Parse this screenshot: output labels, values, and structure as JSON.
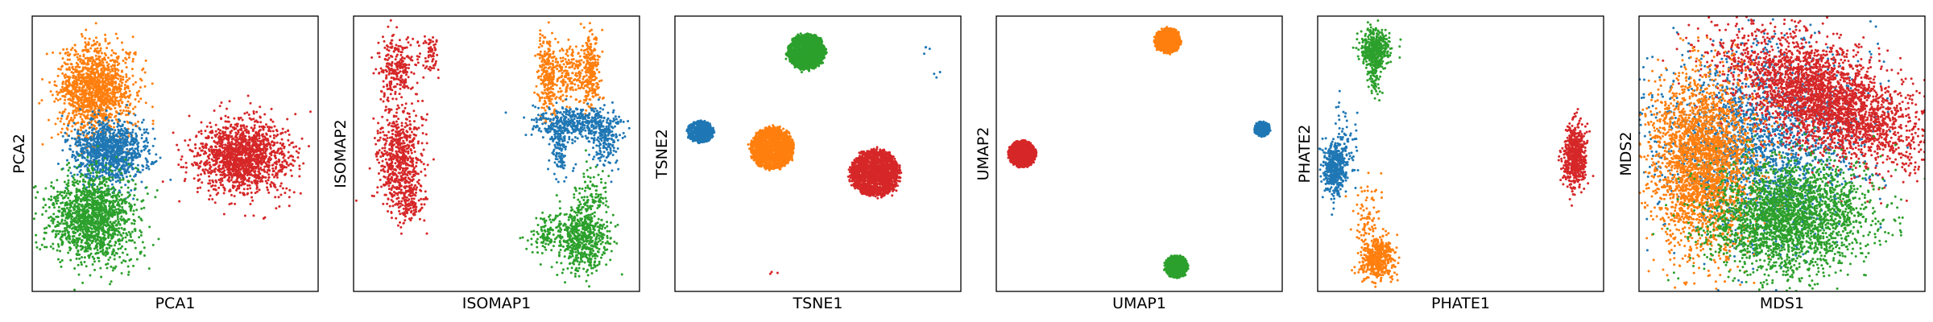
{
  "colors": {
    "blue": "#1f77b4",
    "orange": "#ff7f0e",
    "green": "#2ca02c",
    "red": "#d62728"
  },
  "chart_data": [
    {
      "type": "scatter",
      "xlabel": "PCA1",
      "ylabel": "PCA2",
      "xlim": [
        0,
        100
      ],
      "ylim": [
        0,
        100
      ],
      "grid": false,
      "ticks": "none",
      "clusters": [
        {
          "color": "orange",
          "cx": 22,
          "cy": 73,
          "sx": 6.5,
          "sy": 8.0,
          "n": 1400
        },
        {
          "color": "blue",
          "cx": 27,
          "cy": 51,
          "sx": 6.5,
          "sy": 5.5,
          "n": 1100
        },
        {
          "color": "green",
          "cx": 21,
          "cy": 27,
          "sx": 7.5,
          "sy": 8.0,
          "n": 1500
        },
        {
          "color": "red",
          "cx": 74,
          "cy": 49,
          "sx": 8.0,
          "sy": 6.5,
          "n": 1500
        }
      ]
    },
    {
      "type": "scatter",
      "xlabel": "ISOMAP1",
      "ylabel": "ISOMAP2",
      "xlim": [
        0,
        100
      ],
      "ylim": [
        0,
        100
      ],
      "grid": false,
      "ticks": "none",
      "clusters": [
        {
          "color": "red",
          "cx": 15,
          "cy": 82,
          "sx": 3.5,
          "sy": 6.0,
          "n": 250
        },
        {
          "color": "red",
          "cx": 16,
          "cy": 49,
          "sx": 4.0,
          "sy": 9.0,
          "n": 600
        },
        {
          "color": "red",
          "cx": 19,
          "cy": 33,
          "sx": 3.0,
          "sy": 4.0,
          "n": 150
        },
        {
          "color": "red",
          "cx": 27,
          "cy": 86,
          "sx": 1.5,
          "sy": 3.5,
          "n": 60
        },
        {
          "color": "orange",
          "cx": 68,
          "cy": 78,
          "sx": 1.8,
          "sy": 7.0,
          "n": 250
        },
        {
          "color": "orange",
          "cx": 83,
          "cy": 80,
          "sx": 1.5,
          "sy": 7.0,
          "n": 250
        },
        {
          "color": "orange",
          "cx": 75,
          "cy": 79,
          "sx": 3.5,
          "sy": 5.0,
          "n": 200
        },
        {
          "color": "blue",
          "cx": 77,
          "cy": 61,
          "sx": 7.5,
          "sy": 3.0,
          "n": 400
        },
        {
          "color": "blue",
          "cx": 88,
          "cy": 56,
          "sx": 2.5,
          "sy": 5.5,
          "n": 200
        },
        {
          "color": "blue",
          "cx": 72,
          "cy": 52,
          "sx": 2.0,
          "sy": 5.0,
          "n": 120
        },
        {
          "color": "green",
          "cx": 80,
          "cy": 19,
          "sx": 4.5,
          "sy": 6.0,
          "n": 550
        },
        {
          "color": "green",
          "cx": 83,
          "cy": 34,
          "sx": 3.0,
          "sy": 6.0,
          "n": 120
        },
        {
          "color": "green",
          "cx": 68,
          "cy": 21,
          "sx": 3.0,
          "sy": 3.5,
          "n": 120
        }
      ]
    },
    {
      "type": "scatter",
      "xlabel": "TSNE1",
      "ylabel": "TSNE2",
      "xlim": [
        0,
        100
      ],
      "ylim": [
        0,
        100
      ],
      "grid": false,
      "ticks": "none",
      "clusters": [
        {
          "color": "green",
          "cx": 46,
          "cy": 87,
          "sx": 6.5,
          "sy": 6.5,
          "n": 1500,
          "shape": "disc"
        },
        {
          "color": "blue",
          "cx": 9,
          "cy": 58,
          "sx": 4.5,
          "sy": 4.0,
          "n": 600,
          "shape": "disc"
        },
        {
          "color": "orange",
          "cx": 34,
          "cy": 52,
          "sx": 7.5,
          "sy": 7.5,
          "n": 1500,
          "shape": "disc"
        },
        {
          "color": "red",
          "cx": 70,
          "cy": 43,
          "sx": 8.5,
          "sy": 8.5,
          "n": 1700,
          "shape": "disc"
        },
        {
          "color": "blue",
          "cx": 88,
          "cy": 87,
          "sx": 0.8,
          "sy": 2.5,
          "n": 4
        },
        {
          "color": "blue",
          "cx": 92,
          "cy": 80,
          "sx": 0.8,
          "sy": 1.5,
          "n": 3
        },
        {
          "color": "red",
          "cx": 34,
          "cy": 7,
          "sx": 2.0,
          "sy": 0.5,
          "n": 3
        }
      ]
    },
    {
      "type": "scatter",
      "xlabel": "UMAP1",
      "ylabel": "UMAP2",
      "xlim": [
        0,
        100
      ],
      "ylim": [
        0,
        100
      ],
      "grid": false,
      "ticks": "none",
      "clusters": [
        {
          "color": "orange",
          "cx": 60,
          "cy": 91,
          "sx": 4.5,
          "sy": 4.5,
          "n": 800,
          "shape": "disc"
        },
        {
          "color": "red",
          "cx": 9,
          "cy": 50,
          "sx": 4.8,
          "sy": 4.8,
          "n": 900,
          "shape": "disc"
        },
        {
          "color": "blue",
          "cx": 93,
          "cy": 59,
          "sx": 2.7,
          "sy": 2.7,
          "n": 300,
          "shape": "disc"
        },
        {
          "color": "green",
          "cx": 63,
          "cy": 9,
          "sx": 4.0,
          "sy": 4.0,
          "n": 700,
          "shape": "disc"
        }
      ]
    },
    {
      "type": "scatter",
      "xlabel": "PHATE1",
      "ylabel": "PHATE2",
      "xlim": [
        0,
        100
      ],
      "ylim": [
        0,
        100
      ],
      "grid": false,
      "ticks": "none",
      "clusters": [
        {
          "color": "green",
          "cx": 20,
          "cy": 88,
          "sx": 2.5,
          "sy": 3.5,
          "n": 450
        },
        {
          "color": "green",
          "cx": 20,
          "cy": 78,
          "sx": 1.2,
          "sy": 4.0,
          "n": 80
        },
        {
          "color": "blue",
          "cx": 6,
          "cy": 45,
          "sx": 2.0,
          "sy": 4.5,
          "n": 450
        },
        {
          "color": "blue",
          "cx": 10,
          "cy": 55,
          "sx": 2.0,
          "sy": 8.0,
          "n": 60
        },
        {
          "color": "orange",
          "cx": 21,
          "cy": 12,
          "sx": 3.0,
          "sy": 4.0,
          "n": 450
        },
        {
          "color": "orange",
          "cx": 17,
          "cy": 26,
          "sx": 2.5,
          "sy": 8.0,
          "n": 80
        },
        {
          "color": "red",
          "cx": 90,
          "cy": 49,
          "sx": 2.0,
          "sy": 6.0,
          "n": 600
        }
      ]
    },
    {
      "type": "scatter",
      "xlabel": "MDS1",
      "ylabel": "MDS2",
      "xlim": [
        0,
        100
      ],
      "ylim": [
        0,
        100
      ],
      "grid": false,
      "ticks": "none",
      "clusters": [
        {
          "color": "blue",
          "cx": 42,
          "cy": 55,
          "sx": 18,
          "sy": 17,
          "n": 2000
        },
        {
          "color": "red",
          "cx": 65,
          "cy": 70,
          "sx": 19,
          "sy": 9,
          "n": 3000,
          "angle": -28
        },
        {
          "color": "orange",
          "cx": 22,
          "cy": 46,
          "sx": 9,
          "sy": 16,
          "n": 2500
        },
        {
          "color": "green",
          "cx": 52,
          "cy": 27,
          "sx": 14,
          "sy": 10,
          "n": 2500,
          "angle": 8
        }
      ]
    }
  ]
}
